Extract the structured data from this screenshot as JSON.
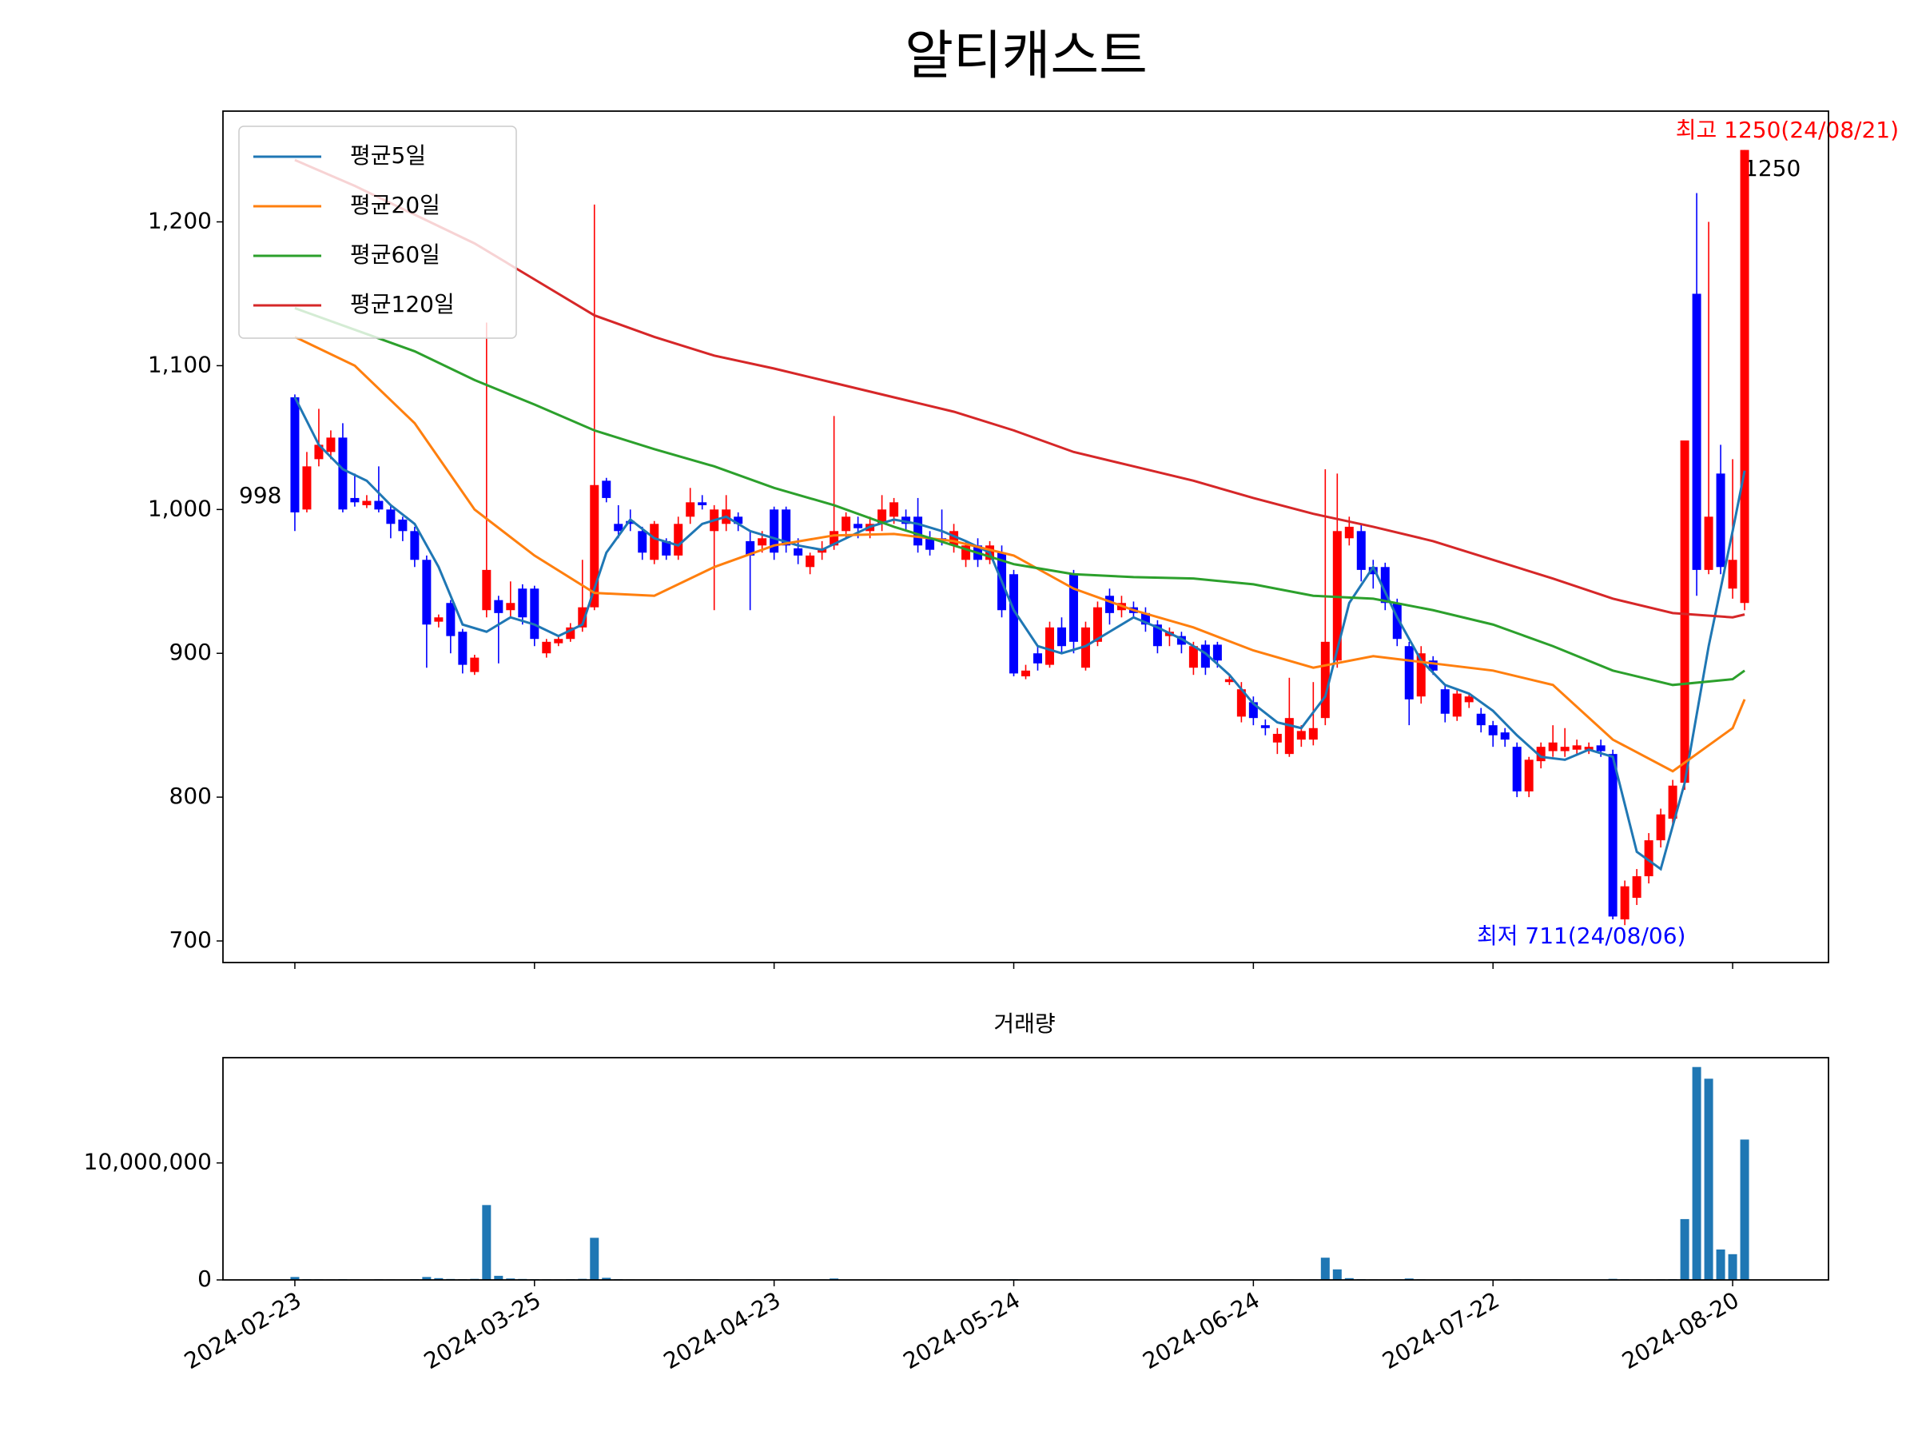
{
  "chart_data": {
    "type": "candlestick",
    "title": "알티캐스트",
    "up_color": "#ff0000",
    "down_color": "#0000ff",
    "open": [
      1078,
      1000,
      1035,
      1040,
      1050,
      1008,
      1003,
      1006,
      1000,
      993,
      985,
      965,
      922,
      935,
      915,
      887,
      930,
      937,
      930,
      945,
      945,
      900,
      907,
      910,
      918,
      932,
      1020,
      990,
      992,
      985,
      965,
      978,
      968,
      995,
      1005,
      985,
      990,
      995,
      978,
      975,
      1000,
      1000,
      973,
      960,
      970,
      975,
      985,
      990,
      985,
      990,
      995,
      995,
      995,
      980,
      980,
      975,
      965,
      975,
      965,
      970,
      955,
      884,
      900,
      892,
      918,
      955,
      890,
      908,
      940,
      930,
      932,
      928,
      920,
      912,
      912,
      890,
      906,
      906,
      880,
      856,
      866,
      850,
      838,
      830,
      840,
      840,
      855,
      895,
      980,
      985,
      960,
      960,
      935,
      905,
      870,
      895,
      875,
      856,
      866,
      858,
      850,
      845,
      835,
      804,
      825,
      832,
      832,
      833,
      833,
      836,
      830,
      715,
      730,
      745,
      770,
      785,
      810,
      1150,
      958,
      1025,
      945,
      935
    ],
    "high": [
      1080,
      1040,
      1070,
      1055,
      1060,
      1025,
      1010,
      1030,
      1003,
      995,
      988,
      968,
      927,
      937,
      917,
      899,
      1130,
      940,
      950,
      948,
      947,
      910,
      912,
      921,
      965,
      1212,
      1022,
      1003,
      1000,
      988,
      992,
      980,
      995,
      1015,
      1010,
      1003,
      1010,
      998,
      985,
      985,
      1002,
      1002,
      980,
      970,
      978,
      1065,
      998,
      995,
      995,
      1010,
      1008,
      1000,
      1008,
      985,
      1000,
      990,
      978,
      980,
      978,
      975,
      958,
      892,
      905,
      922,
      925,
      958,
      922,
      936,
      945,
      940,
      936,
      932,
      923,
      918,
      915,
      908,
      909,
      908,
      885,
      880,
      870,
      854,
      848,
      883,
      850,
      880,
      1028,
      1025,
      995,
      990,
      965,
      963,
      938,
      908,
      905,
      898,
      878,
      875,
      872,
      862,
      853,
      848,
      838,
      828,
      838,
      850,
      848,
      840,
      838,
      840,
      833,
      742,
      750,
      775,
      792,
      812,
      1048,
      1220,
      1200,
      1045,
      1035,
      1250
    ],
    "low": [
      985,
      998,
      1030,
      1035,
      998,
      1002,
      1001,
      998,
      980,
      978,
      960,
      890,
      918,
      900,
      886,
      885,
      925,
      893,
      925,
      920,
      905,
      897,
      905,
      908,
      915,
      930,
      1005,
      980,
      985,
      965,
      962,
      965,
      965,
      990,
      1000,
      930,
      985,
      985,
      930,
      970,
      965,
      970,
      962,
      955,
      965,
      972,
      980,
      980,
      980,
      985,
      990,
      985,
      970,
      968,
      975,
      970,
      960,
      960,
      962,
      925,
      884,
      882,
      888,
      890,
      900,
      900,
      888,
      905,
      920,
      925,
      925,
      915,
      900,
      905,
      900,
      885,
      885,
      890,
      878,
      852,
      850,
      843,
      830,
      828,
      835,
      836,
      850,
      890,
      975,
      950,
      945,
      930,
      905,
      850,
      865,
      885,
      852,
      853,
      862,
      845,
      835,
      835,
      800,
      800,
      820,
      828,
      828,
      830,
      830,
      828,
      715,
      711,
      725,
      740,
      765,
      780,
      805,
      940,
      955,
      955,
      938,
      930
    ],
    "close": [
      998,
      1030,
      1045,
      1050,
      1000,
      1005,
      1006,
      1000,
      990,
      985,
      965,
      920,
      925,
      912,
      892,
      897,
      958,
      928,
      935,
      925,
      910,
      908,
      910,
      918,
      932,
      1017,
      1008,
      985,
      990,
      970,
      990,
      968,
      990,
      1005,
      1003,
      1000,
      1000,
      990,
      968,
      980,
      970,
      975,
      968,
      968,
      973,
      985,
      995,
      987,
      990,
      1000,
      1005,
      990,
      975,
      972,
      978,
      985,
      975,
      965,
      975,
      930,
      886,
      888,
      893,
      918,
      905,
      908,
      918,
      932,
      928,
      935,
      928,
      920,
      905,
      915,
      906,
      905,
      890,
      895,
      882,
      875,
      855,
      848,
      844,
      855,
      846,
      848,
      908,
      985,
      988,
      958,
      955,
      935,
      910,
      868,
      900,
      888,
      858,
      872,
      870,
      850,
      843,
      840,
      804,
      826,
      835,
      838,
      835,
      836,
      835,
      832,
      717,
      738,
      745,
      770,
      788,
      808,
      1048,
      958,
      995,
      960,
      965,
      1250
    ],
    "xticks": [
      {
        "value": 0,
        "label": "2024-02-23"
      },
      {
        "value": 20,
        "label": "2024-03-25"
      },
      {
        "value": 40,
        "label": "2024-04-23"
      },
      {
        "value": 60,
        "label": "2024-05-24"
      },
      {
        "value": 80,
        "label": "2024-06-24"
      },
      {
        "value": 100,
        "label": "2024-07-22"
      },
      {
        "value": 120,
        "label": "2024-08-20"
      }
    ],
    "xlim": [
      -6,
      128
    ],
    "ylim": [
      685,
      1277
    ],
    "yticks": [
      700,
      800,
      900,
      {
        "value": 1000,
        "label": "1,000"
      },
      {
        "value": 1100,
        "label": "1,100"
      },
      {
        "value": 1200,
        "label": "1,200"
      }
    ],
    "legend": "upper left",
    "series": [
      {
        "name": "평균5일",
        "color": "#1f77b4",
        "x": [
          0,
          2,
          4,
          6,
          8,
          10,
          12,
          14,
          16,
          18,
          20,
          22,
          24,
          26,
          28,
          30,
          32,
          34,
          36,
          38,
          40,
          42,
          44,
          46,
          48,
          50,
          52,
          54,
          56,
          58,
          60,
          62,
          64,
          66,
          68,
          70,
          72,
          74,
          76,
          78,
          80,
          82,
          84,
          86,
          88,
          90,
          92,
          94,
          96,
          98,
          100,
          102,
          104,
          106,
          108,
          110,
          112,
          114,
          116,
          118,
          120,
          121
        ],
        "values": [
          1078,
          1045,
          1028,
          1020,
          1003,
          990,
          960,
          920,
          915,
          925,
          920,
          912,
          920,
          970,
          993,
          980,
          975,
          990,
          995,
          985,
          980,
          975,
          972,
          980,
          988,
          993,
          990,
          985,
          978,
          970,
          930,
          905,
          900,
          905,
          915,
          925,
          918,
          910,
          900,
          885,
          865,
          852,
          848,
          870,
          935,
          960,
          925,
          895,
          878,
          872,
          860,
          843,
          828,
          826,
          833,
          828,
          762,
          750,
          810,
          905,
          985,
          1027
        ]
      },
      {
        "name": "평균20일",
        "color": "#ff7f0e",
        "x": [
          0,
          5,
          10,
          15,
          20,
          25,
          30,
          35,
          40,
          45,
          50,
          55,
          60,
          65,
          70,
          75,
          80,
          85,
          90,
          95,
          100,
          105,
          110,
          115,
          120,
          121
        ],
        "values": [
          1120,
          1100,
          1060,
          1000,
          968,
          942,
          940,
          960,
          975,
          982,
          983,
          978,
          968,
          945,
          930,
          918,
          902,
          890,
          898,
          893,
          888,
          878,
          840,
          818,
          848,
          868
        ]
      },
      {
        "name": "평균60일",
        "color": "#2ca02c",
        "x": [
          0,
          5,
          10,
          15,
          20,
          25,
          30,
          35,
          40,
          45,
          50,
          55,
          60,
          65,
          70,
          75,
          80,
          85,
          90,
          95,
          100,
          105,
          110,
          115,
          120,
          121
        ],
        "values": [
          1140,
          1125,
          1110,
          1090,
          1073,
          1055,
          1042,
          1030,
          1015,
          1003,
          988,
          975,
          962,
          955,
          953,
          952,
          948,
          940,
          938,
          930,
          920,
          905,
          888,
          878,
          882,
          888
        ]
      },
      {
        "name": "평균120일",
        "color": "#d62728",
        "x": [
          0,
          5,
          10,
          15,
          20,
          25,
          30,
          35,
          40,
          45,
          50,
          55,
          60,
          65,
          70,
          75,
          80,
          85,
          90,
          95,
          100,
          105,
          110,
          115,
          120,
          121
        ],
        "values": [
          1243,
          1225,
          1205,
          1185,
          1160,
          1135,
          1120,
          1107,
          1098,
          1088,
          1078,
          1068,
          1055,
          1040,
          1030,
          1020,
          1008,
          997,
          988,
          978,
          965,
          952,
          938,
          928,
          925,
          927
        ]
      }
    ],
    "annotations": {
      "high": "최고 1250(24/08/21)",
      "low": "최저 711(24/08/06)",
      "first": "998",
      "last": "1250"
    },
    "volume": {
      "type": "bar",
      "title": "거래량",
      "color": "#1f77b4",
      "values": [
        250000,
        60000,
        50000,
        40000,
        60000,
        40000,
        30000,
        50000,
        40000,
        30000,
        60000,
        250000,
        150000,
        80000,
        60000,
        90000,
        6400000,
        350000,
        120000,
        80000,
        60000,
        50000,
        40000,
        60000,
        90000,
        3600000,
        180000,
        60000,
        40000,
        30000,
        40000,
        30000,
        30000,
        40000,
        30000,
        50000,
        30000,
        30000,
        40000,
        30000,
        30000,
        40000,
        30000,
        30000,
        40000,
        120000,
        30000,
        20000,
        30000,
        40000,
        30000,
        30000,
        30000,
        20000,
        30000,
        20000,
        20000,
        30000,
        20000,
        40000,
        60000,
        30000,
        20000,
        30000,
        20000,
        40000,
        30000,
        20000,
        30000,
        20000,
        20000,
        20000,
        30000,
        20000,
        20000,
        30000,
        20000,
        20000,
        20000,
        30000,
        40000,
        20000,
        30000,
        40000,
        30000,
        40000,
        1900000,
        900000,
        150000,
        60000,
        40000,
        30000,
        40000,
        120000,
        50000,
        30000,
        40000,
        30000,
        20000,
        30000,
        30000,
        30000,
        50000,
        40000,
        30000,
        40000,
        30000,
        20000,
        20000,
        30000,
        90000,
        60000,
        40000,
        40000,
        50000,
        60000,
        5200000,
        18200000,
        17200000,
        2600000,
        2200000,
        12000000
      ],
      "ylim": [
        0,
        19000000
      ],
      "yticks": [
        0,
        {
          "value": 10000000,
          "label": "10,000,000"
        }
      ]
    }
  }
}
